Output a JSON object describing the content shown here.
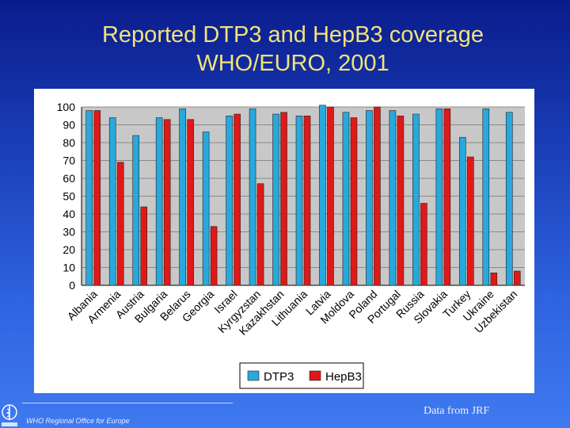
{
  "slide": {
    "title_line1": "Reported DTP3 and HepB3 coverage",
    "title_line2": "WHO/EURO, 2001",
    "footer_org": "WHO Regional Office for Europe",
    "footer_credit": "Data from  JRF"
  },
  "colors": {
    "dtp3": "#29a8dc",
    "hepb3": "#e01818",
    "title": "#f3e27a"
  },
  "chart_data": {
    "type": "bar",
    "title": "",
    "xlabel": "",
    "ylabel": "",
    "ylim": [
      0,
      100
    ],
    "yticks": [
      0,
      10,
      20,
      30,
      40,
      50,
      60,
      70,
      80,
      90,
      100
    ],
    "grid": true,
    "legend_position": "bottom",
    "categories": [
      "Albania",
      "Armenia",
      "Austria",
      "Bulgaria",
      "Belarus",
      "Georgia",
      "Israel",
      "Kyrgyzstan",
      "Kazakhstan",
      "Lithuania",
      "Latvia",
      "Moldova",
      "Poland",
      "Portugal",
      "Russia",
      "Slovakia",
      "Turkey",
      "Ukraine",
      "Uzbekistan"
    ],
    "series": [
      {
        "name": "DTP3",
        "color": "#29a8dc",
        "values": [
          98,
          94,
          84,
          94,
          99,
          86,
          95,
          99,
          96,
          95,
          101,
          97,
          98,
          98,
          96,
          99,
          83,
          99,
          97
        ]
      },
      {
        "name": "HepB3",
        "color": "#e01818",
        "values": [
          98,
          69,
          44,
          93,
          93,
          33,
          96,
          57,
          97,
          95,
          100,
          94,
          100,
          95,
          46,
          99,
          72,
          7,
          8
        ]
      }
    ]
  }
}
